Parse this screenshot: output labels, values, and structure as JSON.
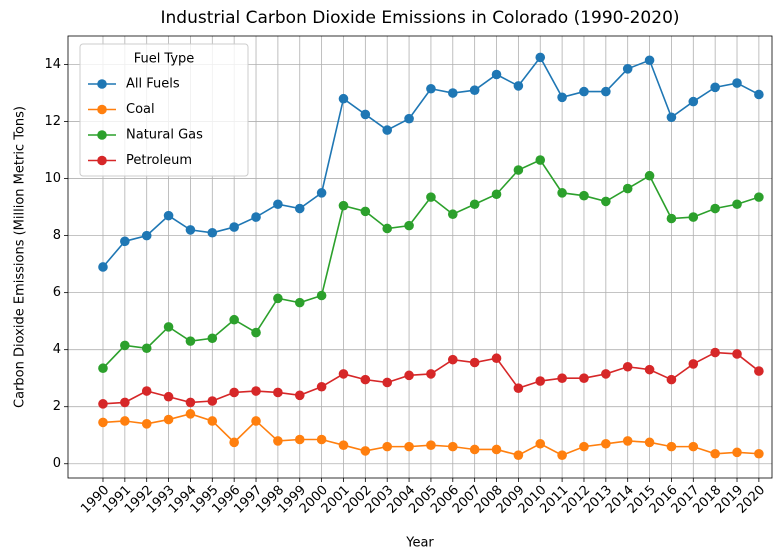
{
  "chart_data": {
    "type": "line",
    "title": "Industrial Carbon Dioxide Emissions in Colorado (1990-2020)",
    "xlabel": "Year",
    "ylabel": "Carbon Dioxide Emissions (Million Metric Tons)",
    "x": [
      1990,
      1991,
      1992,
      1993,
      1994,
      1995,
      1996,
      1997,
      1998,
      1999,
      2000,
      2001,
      2002,
      2003,
      2004,
      2005,
      2006,
      2007,
      2008,
      2009,
      2010,
      2011,
      2012,
      2013,
      2014,
      2015,
      2016,
      2017,
      2018,
      2019,
      2020
    ],
    "xlim": [
      1988.4,
      2020.6
    ],
    "xticks": [
      1990,
      1991,
      1992,
      1993,
      1994,
      1995,
      1996,
      1997,
      1998,
      1999,
      2000,
      2001,
      2002,
      2003,
      2004,
      2005,
      2006,
      2007,
      2008,
      2009,
      2010,
      2011,
      2012,
      2013,
      2014,
      2015,
      2016,
      2017,
      2018,
      2019,
      2020
    ],
    "ylim": [
      -0.5,
      15
    ],
    "yticks": [
      0,
      2,
      4,
      6,
      8,
      10,
      12,
      14
    ],
    "grid": true,
    "legend_title": "Fuel Type",
    "legend_position": "upper-left",
    "series": [
      {
        "name": "All Fuels",
        "color": "#1f77b4",
        "values": [
          6.9,
          7.8,
          8.0,
          8.7,
          8.2,
          8.1,
          8.3,
          8.65,
          9.1,
          8.95,
          9.5,
          12.8,
          12.25,
          11.7,
          12.1,
          13.15,
          13.0,
          13.1,
          13.65,
          13.25,
          14.25,
          12.85,
          13.05,
          13.05,
          13.85,
          14.15,
          12.15,
          12.7,
          13.2,
          13.35,
          12.95
        ]
      },
      {
        "name": "Coal",
        "color": "#ff7f0e",
        "values": [
          1.45,
          1.5,
          1.4,
          1.55,
          1.75,
          1.5,
          0.75,
          1.5,
          0.8,
          0.85,
          0.85,
          0.65,
          0.45,
          0.6,
          0.6,
          0.65,
          0.6,
          0.5,
          0.5,
          0.3,
          0.7,
          0.3,
          0.6,
          0.7,
          0.8,
          0.75,
          0.6,
          0.6,
          0.35,
          0.4,
          0.35
        ]
      },
      {
        "name": "Natural Gas",
        "color": "#2ca02c",
        "values": [
          3.35,
          4.15,
          4.05,
          4.8,
          4.3,
          4.4,
          5.05,
          4.6,
          5.8,
          5.65,
          5.9,
          9.05,
          8.85,
          8.25,
          8.35,
          9.35,
          8.75,
          9.1,
          9.45,
          10.3,
          10.65,
          9.5,
          9.4,
          9.2,
          9.65,
          10.1,
          8.6,
          8.65,
          8.95,
          9.1,
          9.35
        ]
      },
      {
        "name": "Petroleum",
        "color": "#d62728",
        "values": [
          2.1,
          2.15,
          2.55,
          2.35,
          2.15,
          2.2,
          2.5,
          2.55,
          2.5,
          2.4,
          2.7,
          3.15,
          2.95,
          2.85,
          3.1,
          3.15,
          3.65,
          3.55,
          3.7,
          2.65,
          2.9,
          3.0,
          3.0,
          3.15,
          3.4,
          3.3,
          2.95,
          3.5,
          3.9,
          3.85,
          3.25
        ]
      }
    ]
  }
}
